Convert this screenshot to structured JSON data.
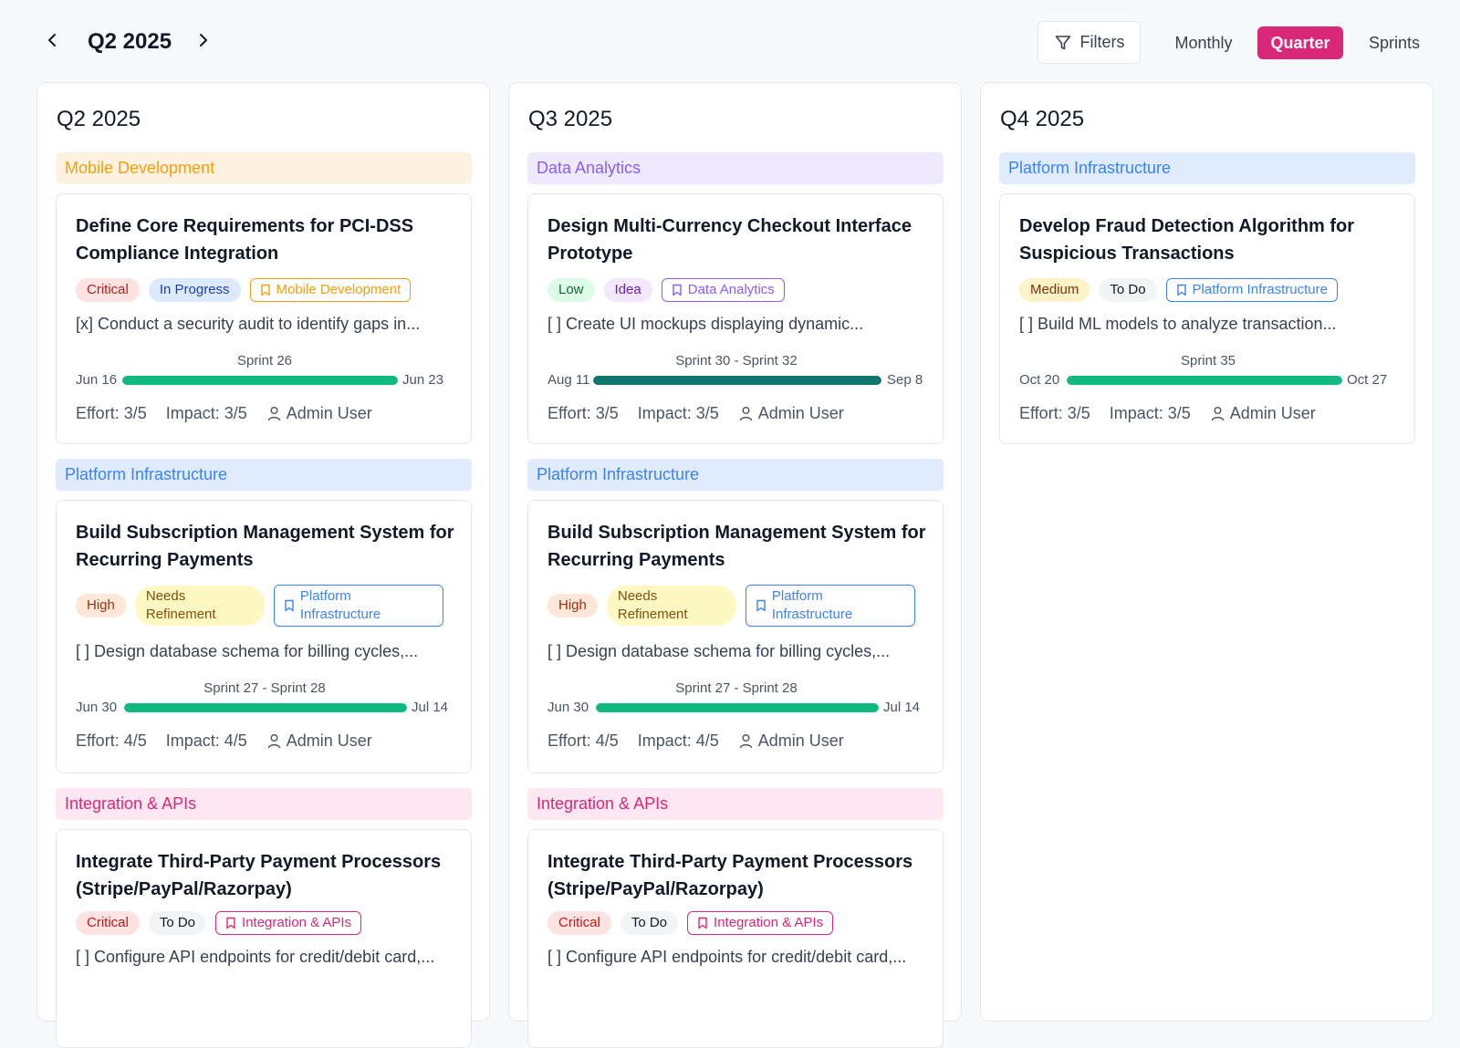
{
  "header": {
    "period": "Q2 2025",
    "filters_label": "Filters",
    "views": [
      "Monthly",
      "Quarter",
      "Sprints"
    ],
    "active_view": "Quarter",
    "accent_color": "#db2777"
  },
  "columns": [
    {
      "title": "Q2 2025",
      "groups": [
        {
          "name": "Mobile Development",
          "card": {
            "title": "Define Core Requirements for PCI-DSS Compliance Integration",
            "priority": "Critical",
            "status": "In Progress",
            "category": "Mobile Development",
            "description": "[x] Conduct a security audit to identify gaps in...",
            "sprint": "Sprint 26",
            "start": "Jun 16",
            "end": "Jun 23",
            "effort": "Effort: 3/5",
            "impact": "Impact: 3/5",
            "owner": "Admin User"
          }
        },
        {
          "name": "Platform Infrastructure",
          "card": {
            "title": "Build Subscription Management System for Recurring Payments",
            "priority": "High",
            "status": "Needs Refinement",
            "category": "Platform Infrastructure",
            "description": "[ ] Design database schema for billing cycles,...",
            "sprint": "Sprint 27 - Sprint 28",
            "start": "Jun 30",
            "end": "Jul 14",
            "effort": "Effort: 4/5",
            "impact": "Impact: 4/5",
            "owner": "Admin User"
          }
        },
        {
          "name": "Integration & APIs",
          "card": {
            "title": "Integrate Third-Party Payment Processors (Stripe/PayPal/Razorpay)",
            "priority": "Critical",
            "status": "To Do",
            "category": "Integration & APIs",
            "description": "[ ] Configure API endpoints for credit/debit card,..."
          }
        }
      ]
    },
    {
      "title": "Q3 2025",
      "groups": [
        {
          "name": "Data Analytics",
          "card": {
            "title": "Design Multi-Currency Checkout Interface Prototype",
            "priority": "Low",
            "status": "Idea",
            "category": "Data Analytics",
            "description": "[ ] Create UI mockups displaying dynamic...",
            "sprint": "Sprint 30 - Sprint 32",
            "start": "Aug 11",
            "end": "Sep 8",
            "effort": "Effort: 3/5",
            "impact": "Impact: 3/5",
            "owner": "Admin User"
          }
        },
        {
          "name": "Platform Infrastructure",
          "card": {
            "title": "Build Subscription Management System for Recurring Payments",
            "priority": "High",
            "status": "Needs Refinement",
            "category": "Platform Infrastructure",
            "description": "[ ] Design database schema for billing cycles,...",
            "sprint": "Sprint 27 - Sprint 28",
            "start": "Jun 30",
            "end": "Jul 14",
            "effort": "Effort: 4/5",
            "impact": "Impact: 4/5",
            "owner": "Admin User"
          }
        },
        {
          "name": "Integration & APIs",
          "card": {
            "title": "Integrate Third-Party Payment Processors (Stripe/PayPal/Razorpay)",
            "priority": "Critical",
            "status": "To Do",
            "category": "Integration & APIs",
            "description": "[ ] Configure API endpoints for credit/debit card,..."
          }
        }
      ]
    },
    {
      "title": "Q4 2025",
      "groups": [
        {
          "name": "Platform Infrastructure",
          "card": {
            "title": "Develop Fraud Detection Algorithm for Suspicious Transactions",
            "priority": "Medium",
            "status": "To Do",
            "category": "Platform Infrastructure",
            "description": "[ ] Build ML models to analyze transaction...",
            "sprint": "Sprint 35",
            "start": "Oct 20",
            "end": "Oct 27",
            "effort": "Effort: 3/5",
            "impact": "Impact: 3/5",
            "owner": "Admin User"
          }
        }
      ]
    }
  ],
  "colors": {
    "progress_green": "#10b981",
    "progress_dark_green": "#0f766e",
    "mobile_dev": "#f59e0b",
    "data_analytics": "#8b5cf6",
    "platform_infra": "#3b82f6",
    "integration_apis": "#db2777"
  }
}
